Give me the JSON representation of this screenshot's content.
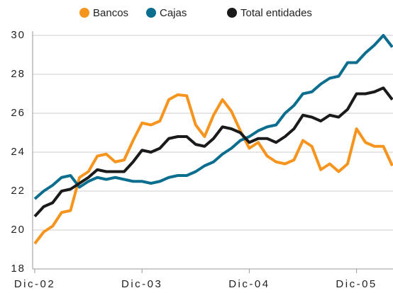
{
  "chart_data": {
    "type": "line",
    "categories": [
      "Dic-02",
      null,
      null,
      null,
      null,
      null,
      null,
      null,
      null,
      null,
      null,
      null,
      "Dic-03",
      null,
      null,
      null,
      null,
      null,
      null,
      null,
      null,
      null,
      null,
      null,
      "Dic-04",
      null,
      null,
      null,
      null,
      null,
      null,
      null,
      null,
      null,
      null,
      null,
      "Dic-05",
      null,
      null,
      null,
      null
    ],
    "series": [
      {
        "name": "Bancos",
        "color": "#f7941d",
        "values": [
          19.3,
          19.9,
          20.2,
          20.9,
          21.0,
          22.7,
          23.0,
          23.8,
          23.9,
          23.5,
          23.6,
          24.6,
          25.5,
          25.4,
          25.6,
          26.7,
          26.95,
          26.9,
          25.4,
          24.8,
          25.9,
          26.7,
          26.1,
          25.1,
          24.2,
          24.5,
          23.8,
          23.5,
          23.4,
          23.6,
          24.6,
          24.3,
          23.1,
          23.4,
          23.0,
          23.4,
          25.2,
          24.5,
          24.3,
          24.3,
          23.3
        ]
      },
      {
        "name": "Cajas",
        "color": "#0b6e8e",
        "values": [
          21.6,
          22.0,
          22.3,
          22.7,
          22.8,
          22.2,
          22.5,
          22.7,
          22.6,
          22.7,
          22.6,
          22.5,
          22.5,
          22.4,
          22.5,
          22.7,
          22.8,
          22.8,
          23.0,
          23.3,
          23.5,
          23.9,
          24.2,
          24.6,
          24.8,
          25.1,
          25.3,
          25.4,
          26.0,
          26.4,
          27.0,
          27.1,
          27.5,
          27.8,
          27.9,
          28.6,
          28.6,
          29.1,
          29.5,
          30.0,
          29.4
        ]
      },
      {
        "name": "Total entidades",
        "color": "#1a1a1a",
        "values": [
          20.7,
          21.2,
          21.4,
          22.0,
          22.1,
          22.4,
          22.7,
          23.1,
          23.0,
          23.0,
          23.0,
          23.5,
          24.1,
          24.0,
          24.2,
          24.7,
          24.8,
          24.8,
          24.4,
          24.3,
          24.7,
          25.3,
          25.2,
          25.0,
          24.5,
          24.7,
          24.7,
          24.5,
          24.8,
          25.2,
          25.9,
          25.8,
          25.6,
          25.9,
          25.8,
          26.2,
          27.0,
          27.0,
          27.1,
          27.3,
          26.7
        ]
      }
    ],
    "ylim": [
      18,
      30
    ],
    "yticks": [
      18,
      20,
      22,
      24,
      26,
      28,
      30
    ],
    "grid": true,
    "legend": "top"
  }
}
